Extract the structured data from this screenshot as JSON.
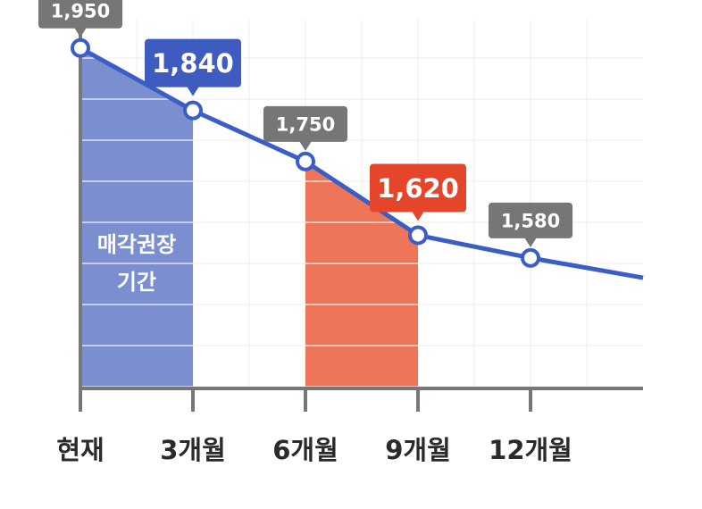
{
  "chart_data": {
    "type": "line",
    "title": "",
    "xlabel": "",
    "ylabel": "",
    "categories": [
      "현재",
      "3개월",
      "6개월",
      "9개월",
      "12개월"
    ],
    "series": [
      {
        "values": [
          1950,
          1840,
          1750,
          1620,
          1580
        ],
        "color": "#3b5ec6"
      }
    ],
    "data_labels": [
      {
        "text": "1,950",
        "style": "gray"
      },
      {
        "text": "1,840",
        "style": "blue"
      },
      {
        "text": "1,750",
        "style": "gray"
      },
      {
        "text": "1,620",
        "style": "red"
      },
      {
        "text": "1,580",
        "style": "gray"
      }
    ],
    "shaded_regions": [
      {
        "from": "현재",
        "to": "3개월",
        "color": "#7b8fd0",
        "label_lines": [
          "매각권장",
          "기간"
        ]
      },
      {
        "from": "6개월",
        "to": "9개월",
        "color": "#ec7657"
      }
    ],
    "ylim": [
      1350,
      2000
    ],
    "trend_after_last": 1545,
    "grid": true,
    "colors": {
      "line": "#3b5ec6",
      "blue_callout": "#3e5bc0",
      "red_callout": "#e5452b",
      "gray_callout": "#767676",
      "axis": "#777777",
      "grid": "#eeeeee"
    }
  }
}
